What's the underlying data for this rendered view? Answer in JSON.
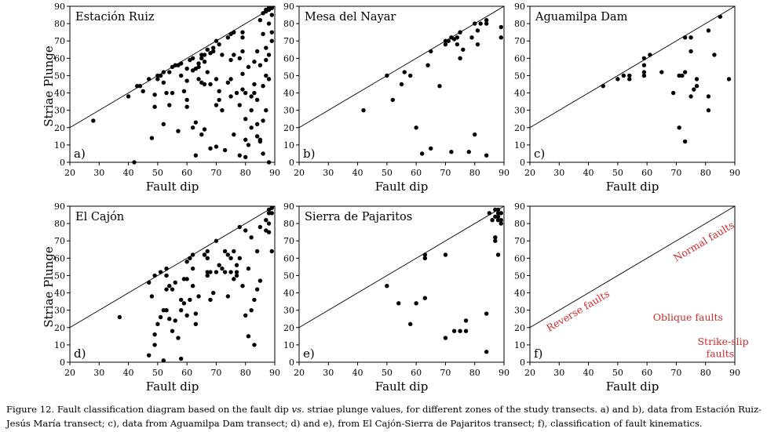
{
  "figure": {
    "shared_ylabel": "Striae Plunge",
    "caption": {
      "lead": "Figure 12. Fault classification diagram based on the fault dip ",
      "italic": "vs.",
      "rest": " striae plunge values, for different zones of the study transects. a) and b), data from Estación Ruiz-Jesús María transect; c), data from Aguamilpa Dam transect; d) and e), from El Cajón-Sierra de Pajaritos transect; f), classification of fault kinematics."
    }
  },
  "chart_data": [
    {
      "type": "scatter",
      "panel_letter": "a)",
      "title": "Estación Ruiz",
      "xlabel": "Fault dip",
      "ylabel": "Striae Plunge",
      "xlim": [
        20,
        90
      ],
      "ylim": [
        0,
        90
      ],
      "xticks": [
        20,
        30,
        40,
        50,
        60,
        70,
        80,
        90
      ],
      "yticks": [
        0,
        10,
        20,
        30,
        40,
        50,
        60,
        70,
        80,
        90
      ],
      "reference_line": "plunge = dip",
      "points": [
        [
          28,
          24
        ],
        [
          40,
          38
        ],
        [
          42,
          0
        ],
        [
          43,
          44
        ],
        [
          44,
          44
        ],
        [
          45,
          41
        ],
        [
          47,
          48
        ],
        [
          48,
          14
        ],
        [
          49,
          32
        ],
        [
          49,
          39
        ],
        [
          50,
          50
        ],
        [
          50,
          48
        ],
        [
          51,
          50
        ],
        [
          52,
          22
        ],
        [
          52,
          52
        ],
        [
          52,
          46
        ],
        [
          53,
          40
        ],
        [
          54,
          33
        ],
        [
          54,
          52
        ],
        [
          55,
          40
        ],
        [
          55,
          55
        ],
        [
          56,
          56
        ],
        [
          57,
          56
        ],
        [
          57,
          18
        ],
        [
          58,
          57
        ],
        [
          58,
          50
        ],
        [
          59,
          41
        ],
        [
          60,
          54
        ],
        [
          60,
          47
        ],
        [
          60,
          36
        ],
        [
          60,
          32
        ],
        [
          61,
          59
        ],
        [
          62,
          53
        ],
        [
          62,
          60
        ],
        [
          62,
          20
        ],
        [
          63,
          54
        ],
        [
          63,
          23
        ],
        [
          63,
          4
        ],
        [
          64,
          57
        ],
        [
          64,
          55
        ],
        [
          64,
          48
        ],
        [
          65,
          60
        ],
        [
          65,
          62
        ],
        [
          65,
          16
        ],
        [
          65,
          46
        ],
        [
          66,
          62
        ],
        [
          66,
          58
        ],
        [
          66,
          45
        ],
        [
          66,
          19
        ],
        [
          67,
          65
        ],
        [
          67,
          52
        ],
        [
          68,
          63
        ],
        [
          68,
          45
        ],
        [
          68,
          8
        ],
        [
          69,
          64
        ],
        [
          69,
          66
        ],
        [
          70,
          70
        ],
        [
          70,
          48
        ],
        [
          70,
          33
        ],
        [
          70,
          9
        ],
        [
          71,
          68
        ],
        [
          71,
          41
        ],
        [
          71,
          36
        ],
        [
          72,
          62
        ],
        [
          72,
          30
        ],
        [
          73,
          7
        ],
        [
          74,
          72
        ],
        [
          74,
          46
        ],
        [
          75,
          74
        ],
        [
          75,
          59
        ],
        [
          75,
          48
        ],
        [
          75,
          38
        ],
        [
          76,
          75
        ],
        [
          76,
          62
        ],
        [
          76,
          16
        ],
        [
          77,
          40
        ],
        [
          78,
          60
        ],
        [
          78,
          33
        ],
        [
          78,
          4
        ],
        [
          79,
          75
        ],
        [
          79,
          72
        ],
        [
          79,
          64
        ],
        [
          79,
          51
        ],
        [
          79,
          42
        ],
        [
          80,
          40
        ],
        [
          80,
          25
        ],
        [
          80,
          13
        ],
        [
          80,
          3
        ],
        [
          81,
          55
        ],
        [
          81,
          10
        ],
        [
          82,
          38
        ],
        [
          82,
          30
        ],
        [
          82,
          20
        ],
        [
          83,
          45
        ],
        [
          83,
          58
        ],
        [
          83,
          40
        ],
        [
          84,
          64
        ],
        [
          84,
          36
        ],
        [
          84,
          22
        ],
        [
          84,
          15
        ],
        [
          85,
          82
        ],
        [
          85,
          56
        ],
        [
          85,
          12
        ],
        [
          85,
          13
        ],
        [
          86,
          86
        ],
        [
          86,
          74
        ],
        [
          86,
          44
        ],
        [
          86,
          24
        ],
        [
          86,
          5
        ],
        [
          87,
          88
        ],
        [
          87,
          87
        ],
        [
          87,
          66
        ],
        [
          87,
          59
        ],
        [
          87,
          50
        ],
        [
          87,
          30
        ],
        [
          88,
          88
        ],
        [
          88,
          89
        ],
        [
          88,
          80
        ],
        [
          88,
          62
        ],
        [
          88,
          48
        ],
        [
          88,
          0
        ],
        [
          89,
          89
        ],
        [
          89,
          85
        ],
        [
          89,
          75
        ],
        [
          89,
          70
        ]
      ]
    },
    {
      "type": "scatter",
      "panel_letter": "b)",
      "title": "Mesa del Nayar",
      "xlabel": "Fault dip",
      "ylabel": "",
      "xlim": [
        20,
        90
      ],
      "ylim": [
        0,
        90
      ],
      "xticks": [
        20,
        30,
        40,
        50,
        60,
        70,
        80,
        90
      ],
      "yticks": [
        0,
        10,
        20,
        30,
        40,
        50,
        60,
        70,
        80,
        90
      ],
      "reference_line": "plunge = dip",
      "points": [
        [
          42,
          30
        ],
        [
          50,
          50
        ],
        [
          52,
          36
        ],
        [
          55,
          45
        ],
        [
          56,
          52
        ],
        [
          58,
          50
        ],
        [
          60,
          20
        ],
        [
          62,
          5
        ],
        [
          64,
          56
        ],
        [
          65,
          64
        ],
        [
          65,
          8
        ],
        [
          68,
          44
        ],
        [
          70,
          68
        ],
        [
          70,
          70
        ],
        [
          71,
          70
        ],
        [
          72,
          72
        ],
        [
          72,
          6
        ],
        [
          73,
          71
        ],
        [
          74,
          72
        ],
        [
          74,
          68
        ],
        [
          75,
          60
        ],
        [
          75,
          75
        ],
        [
          76,
          65
        ],
        [
          78,
          6
        ],
        [
          79,
          72
        ],
        [
          80,
          16
        ],
        [
          80,
          80
        ],
        [
          81,
          68
        ],
        [
          81,
          76
        ],
        [
          82,
          80
        ],
        [
          84,
          82
        ],
        [
          84,
          4
        ],
        [
          84,
          80
        ],
        [
          89,
          78
        ],
        [
          89,
          72
        ]
      ]
    },
    {
      "type": "scatter",
      "panel_letter": "c)",
      "title": "Aguamilpa Dam",
      "xlabel": "Fault dip",
      "ylabel": "",
      "xlim": [
        20,
        90
      ],
      "ylim": [
        0,
        90
      ],
      "xticks": [
        20,
        30,
        40,
        50,
        60,
        70,
        80,
        90
      ],
      "yticks": [
        0,
        10,
        20,
        30,
        40,
        50,
        60,
        70,
        80,
        90
      ],
      "reference_line": "plunge = dip",
      "points": [
        [
          45,
          44
        ],
        [
          50,
          48
        ],
        [
          52,
          50
        ],
        [
          54,
          48
        ],
        [
          54,
          50
        ],
        [
          59,
          60
        ],
        [
          59,
          56
        ],
        [
          59,
          52
        ],
        [
          59,
          50
        ],
        [
          61,
          62
        ],
        [
          65,
          52
        ],
        [
          69,
          40
        ],
        [
          71,
          50
        ],
        [
          71,
          20
        ],
        [
          72,
          50
        ],
        [
          73,
          72
        ],
        [
          73,
          52
        ],
        [
          73,
          12
        ],
        [
          75,
          72
        ],
        [
          75,
          64
        ],
        [
          75,
          38
        ],
        [
          76,
          42
        ],
        [
          77,
          48
        ],
        [
          77,
          44
        ],
        [
          81,
          76
        ],
        [
          81,
          38
        ],
        [
          81,
          30
        ],
        [
          83,
          62
        ],
        [
          85,
          84
        ],
        [
          88,
          48
        ]
      ]
    },
    {
      "type": "scatter",
      "panel_letter": "d)",
      "title": "El Cajón",
      "xlabel": "Fault dip",
      "ylabel": "Striae Plunge",
      "xlim": [
        20,
        90
      ],
      "ylim": [
        0,
        90
      ],
      "xticks": [
        20,
        30,
        40,
        50,
        60,
        70,
        80,
        90
      ],
      "yticks": [
        0,
        10,
        20,
        30,
        40,
        50,
        60,
        70,
        80,
        90
      ],
      "reference_line": "plunge = dip",
      "points": [
        [
          37,
          26
        ],
        [
          47,
          4
        ],
        [
          47,
          46
        ],
        [
          48,
          38
        ],
        [
          49,
          16
        ],
        [
          49,
          10
        ],
        [
          49,
          50
        ],
        [
          50,
          22
        ],
        [
          51,
          26
        ],
        [
          51,
          52
        ],
        [
          52,
          30
        ],
        [
          52,
          1
        ],
        [
          53,
          50
        ],
        [
          53,
          54
        ],
        [
          53,
          42
        ],
        [
          53,
          30
        ],
        [
          54,
          44
        ],
        [
          54,
          25
        ],
        [
          55,
          42
        ],
        [
          55,
          18
        ],
        [
          56,
          46
        ],
        [
          56,
          24
        ],
        [
          57,
          14
        ],
        [
          58,
          30
        ],
        [
          58,
          2
        ],
        [
          58,
          36
        ],
        [
          59,
          48
        ],
        [
          59,
          34
        ],
        [
          60,
          58
        ],
        [
          60,
          48
        ],
        [
          60,
          27
        ],
        [
          61,
          60
        ],
        [
          61,
          36
        ],
        [
          62,
          62
        ],
        [
          62,
          54
        ],
        [
          62,
          44
        ],
        [
          63,
          22
        ],
        [
          63,
          28
        ],
        [
          64,
          38
        ],
        [
          66,
          62
        ],
        [
          66,
          62
        ],
        [
          67,
          64
        ],
        [
          67,
          60
        ],
        [
          67,
          52
        ],
        [
          67,
          50
        ],
        [
          68,
          36
        ],
        [
          68,
          52
        ],
        [
          69,
          40
        ],
        [
          70,
          70
        ],
        [
          70,
          52
        ],
        [
          71,
          56
        ],
        [
          72,
          54
        ],
        [
          73,
          64
        ],
        [
          73,
          52
        ],
        [
          74,
          38
        ],
        [
          74,
          62
        ],
        [
          75,
          60
        ],
        [
          75,
          52
        ],
        [
          76,
          48
        ],
        [
          76,
          64
        ],
        [
          77,
          56
        ],
        [
          77,
          52
        ],
        [
          77,
          50
        ],
        [
          78,
          78
        ],
        [
          78,
          60
        ],
        [
          79,
          44
        ],
        [
          80,
          27
        ],
        [
          80,
          76
        ],
        [
          81,
          15
        ],
        [
          81,
          54
        ],
        [
          82,
          72
        ],
        [
          82,
          30
        ],
        [
          83,
          10
        ],
        [
          83,
          36
        ],
        [
          84,
          64
        ],
        [
          84,
          42
        ],
        [
          85,
          78
        ],
        [
          85,
          47
        ],
        [
          87,
          82
        ],
        [
          87,
          76
        ],
        [
          88,
          86
        ],
        [
          88,
          88
        ],
        [
          88,
          80
        ],
        [
          88,
          75
        ],
        [
          89,
          89
        ],
        [
          89,
          86
        ],
        [
          89,
          64
        ]
      ]
    },
    {
      "type": "scatter",
      "panel_letter": "e)",
      "title": "Sierra de Pajaritos",
      "xlabel": "Fault dip",
      "ylabel": "",
      "xlim": [
        20,
        90
      ],
      "ylim": [
        0,
        90
      ],
      "xticks": [
        20,
        30,
        40,
        50,
        60,
        70,
        80,
        90
      ],
      "yticks": [
        0,
        10,
        20,
        30,
        40,
        50,
        60,
        70,
        80,
        90
      ],
      "reference_line": "plunge = dip",
      "points": [
        [
          50,
          44
        ],
        [
          54,
          34
        ],
        [
          58,
          22
        ],
        [
          60,
          34
        ],
        [
          63,
          62
        ],
        [
          63,
          60
        ],
        [
          63,
          37
        ],
        [
          70,
          62
        ],
        [
          70,
          14
        ],
        [
          73,
          18
        ],
        [
          75,
          18
        ],
        [
          77,
          24
        ],
        [
          77,
          18
        ],
        [
          84,
          28
        ],
        [
          84,
          6
        ],
        [
          85,
          86
        ],
        [
          86,
          82
        ],
        [
          87,
          88
        ],
        [
          87,
          84
        ],
        [
          87,
          72
        ],
        [
          87,
          70
        ],
        [
          88,
          88
        ],
        [
          88,
          86
        ],
        [
          88,
          84
        ],
        [
          88,
          82
        ],
        [
          88,
          62
        ],
        [
          89,
          86
        ],
        [
          89,
          82
        ],
        [
          89,
          80
        ]
      ]
    },
    {
      "type": "scatter",
      "panel_letter": "f)",
      "title": "",
      "xlabel": "Fault dip",
      "ylabel": "",
      "xlim": [
        20,
        90
      ],
      "ylim": [
        0,
        90
      ],
      "xticks": [
        20,
        30,
        40,
        50,
        60,
        70,
        80,
        90
      ],
      "yticks": [
        0,
        10,
        20,
        30,
        40,
        50,
        60,
        70,
        80,
        90
      ],
      "reference_line": "plunge = dip",
      "points": [],
      "annotations": [
        {
          "text": "Normal faults",
          "x": 80,
          "y": 68,
          "rotation": "along reference line",
          "color": "#d42a2a"
        },
        {
          "text": "Reverse faults",
          "x": 37,
          "y": 28,
          "rotation": "along reference line",
          "color": "#d42a2a"
        },
        {
          "text": "Oblique faults",
          "x": 74,
          "y": 24,
          "rotation": "none",
          "color": "#d42a2a"
        },
        {
          "text": "Strike-slip",
          "x": 86,
          "y": 10,
          "rotation": "none",
          "color": "#d42a2a"
        },
        {
          "text": "faults",
          "x": 85,
          "y": 3,
          "rotation": "none",
          "color": "#d42a2a"
        }
      ]
    }
  ]
}
